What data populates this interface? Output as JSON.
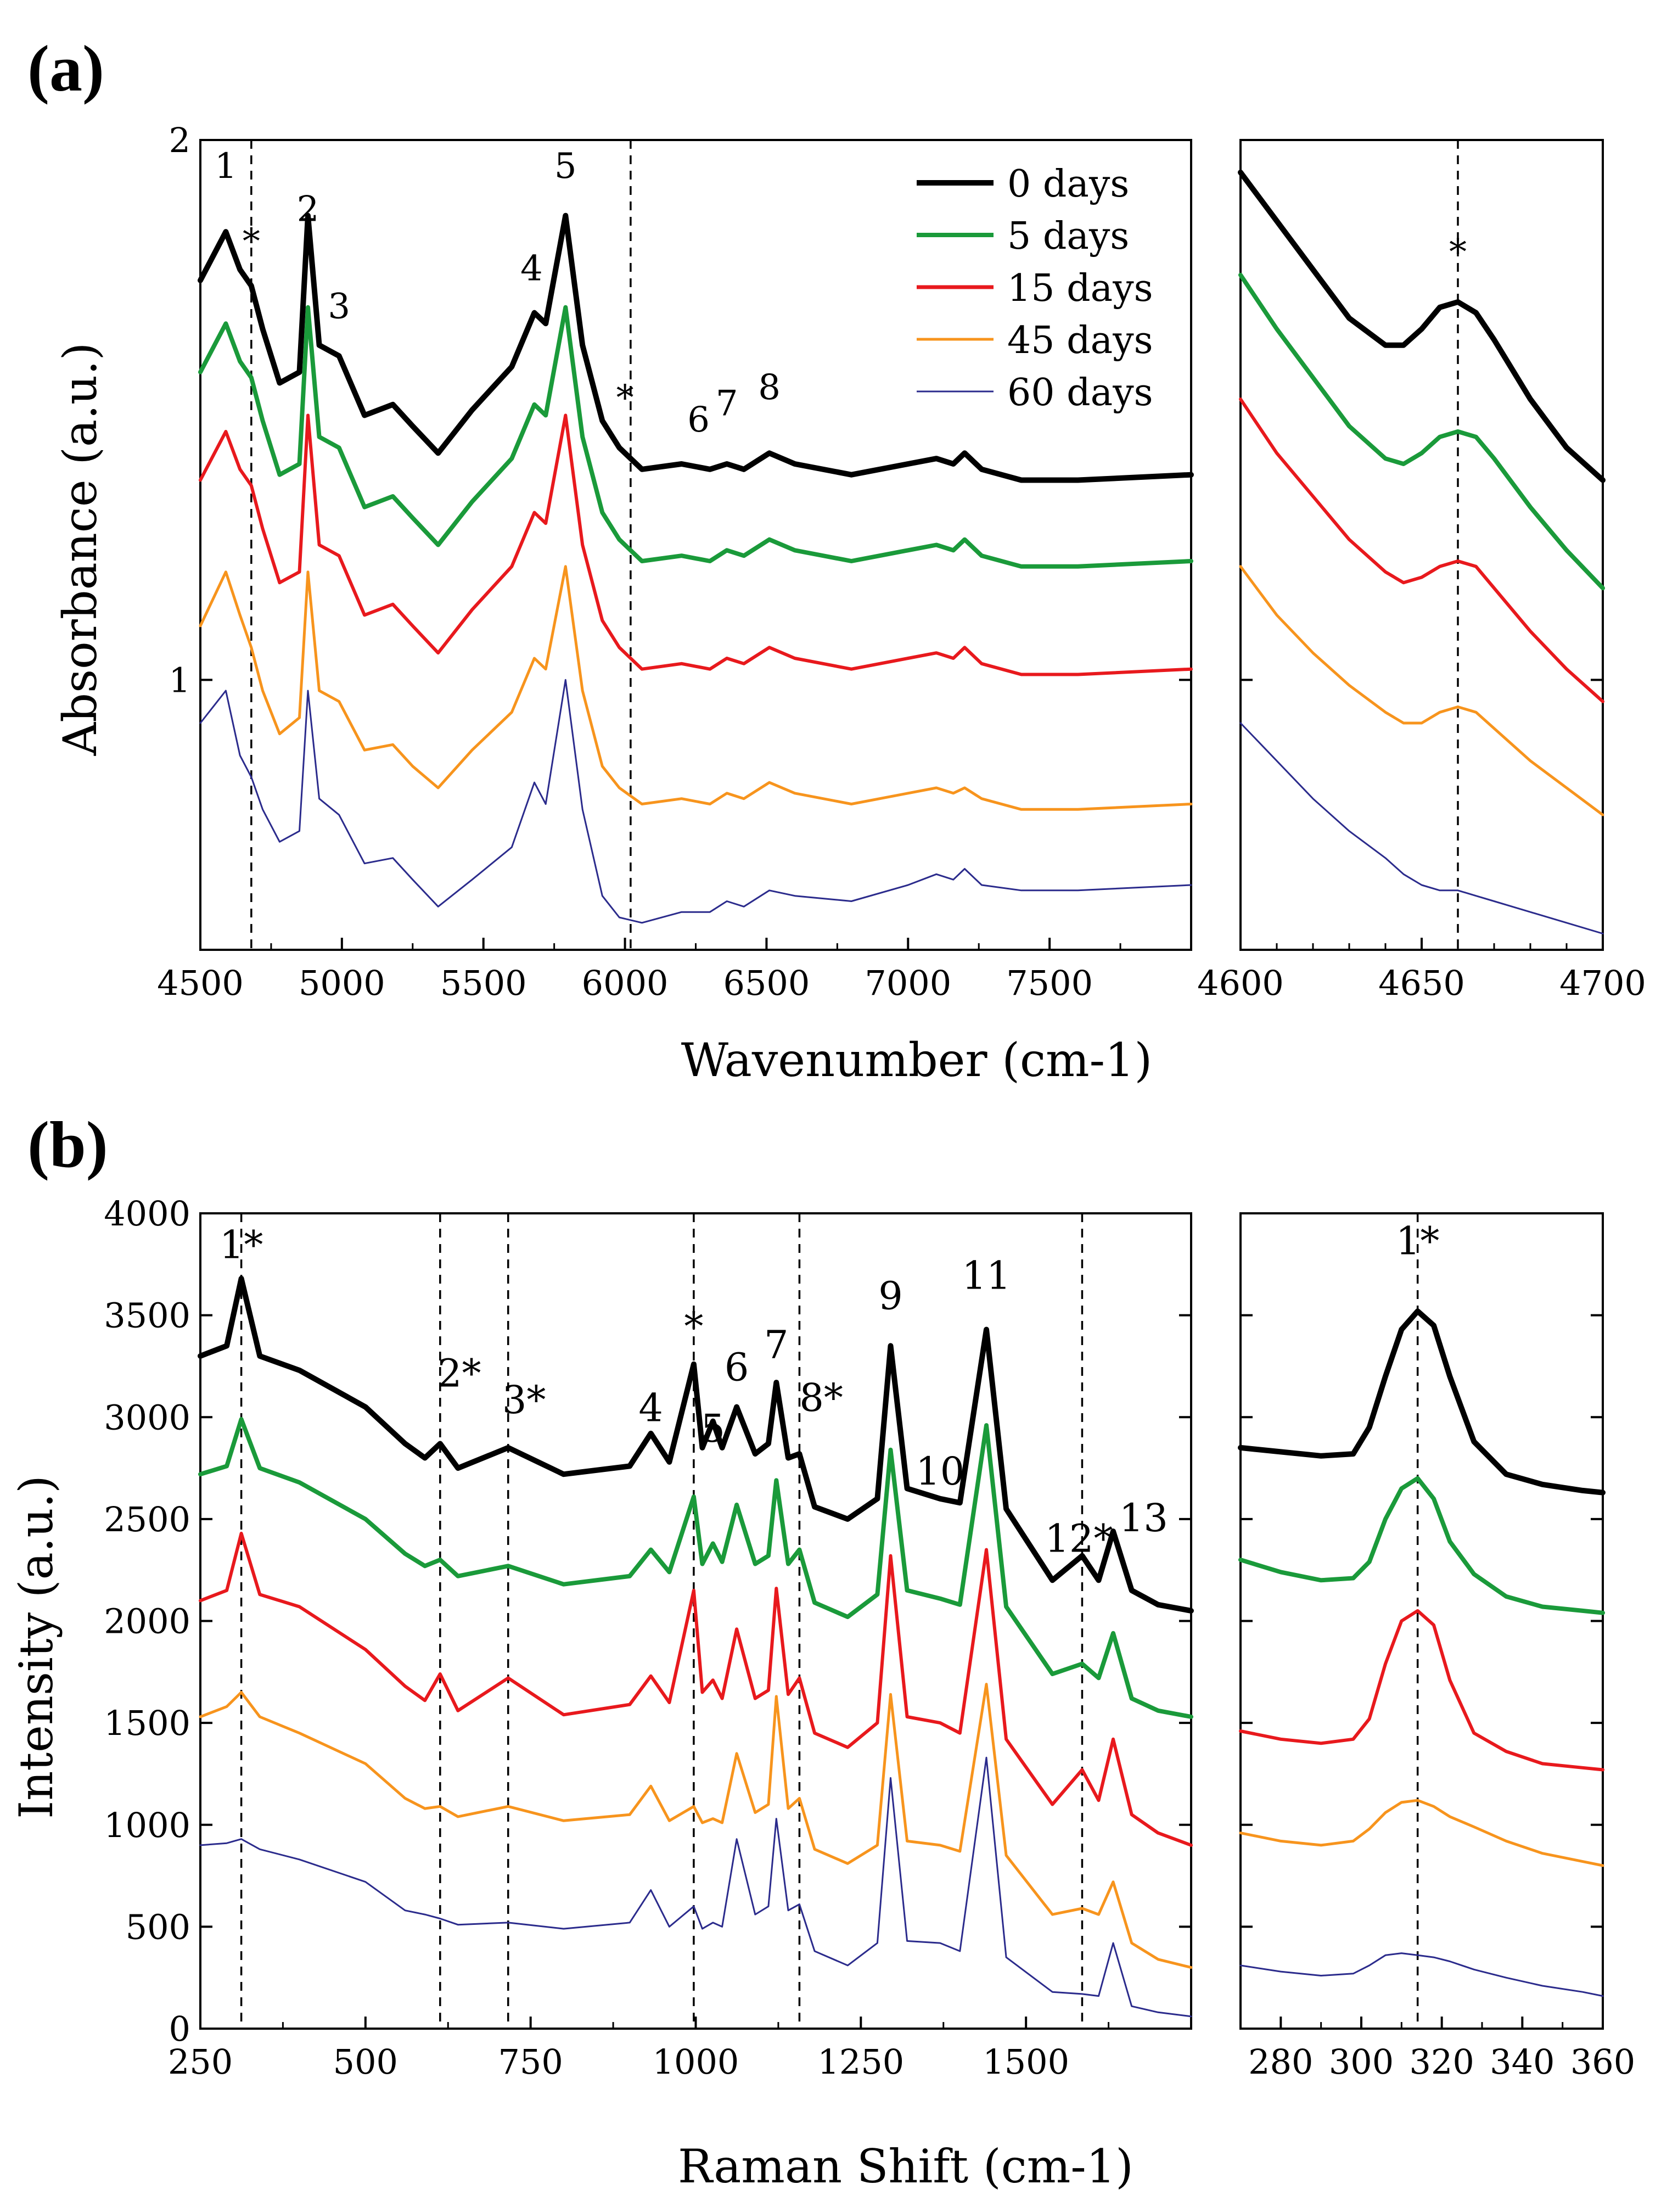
{
  "colors": {
    "0 days": "#000000",
    "5 days": "#1a9a3a",
    "15 days": "#e8191d",
    "45 days": "#f7941d",
    "60 days": "#2b2b8c",
    "frame": "#000000",
    "guide": "#000000"
  },
  "legend": {
    "entries": [
      "0 days",
      "5 days",
      "15 days",
      "45 days",
      "60 days"
    ],
    "position": "top-right"
  },
  "panel_labels": {
    "a": "(a)",
    "b": "(b)"
  },
  "chart_data": [
    {
      "id": "a_main",
      "type": "line",
      "panel": "(a)",
      "xlabel": "Wavenumber (cm-1)",
      "ylabel": "Absorbance (a.u.)",
      "xlim": [
        4500,
        8000
      ],
      "ylim": [
        0.5,
        2
      ],
      "xticks": [
        4500,
        5000,
        5500,
        6000,
        6500,
        7000,
        7500
      ],
      "yticks": [
        1,
        2
      ],
      "vlines": [
        4680,
        6020
      ],
      "peak_labels": [
        {
          "text": "1",
          "x": 4590,
          "y": 1.93
        },
        {
          "text": "*",
          "x": 4680,
          "y": 1.79
        },
        {
          "text": "2",
          "x": 4880,
          "y": 1.85
        },
        {
          "text": "3",
          "x": 4990,
          "y": 1.67
        },
        {
          "text": "4",
          "x": 5670,
          "y": 1.74
        },
        {
          "text": "5",
          "x": 5790,
          "y": 1.93
        },
        {
          "text": "*",
          "x": 6000,
          "y": 1.5
        },
        {
          "text": "6",
          "x": 6260,
          "y": 1.46
        },
        {
          "text": "7",
          "x": 6360,
          "y": 1.49
        },
        {
          "text": "8",
          "x": 6510,
          "y": 1.52
        }
      ],
      "x": [
        4500,
        4590,
        4640,
        4680,
        4720,
        4780,
        4850,
        4880,
        4920,
        4990,
        5080,
        5180,
        5250,
        5340,
        5460,
        5600,
        5680,
        5720,
        5790,
        5850,
        5920,
        5980,
        6060,
        6200,
        6300,
        6360,
        6420,
        6510,
        6600,
        6800,
        7000,
        7100,
        7160,
        7200,
        7260,
        7400,
        7600,
        8000
      ],
      "series": [
        {
          "name": "0 days",
          "values": [
            1.74,
            1.83,
            1.76,
            1.73,
            1.65,
            1.55,
            1.57,
            1.86,
            1.62,
            1.6,
            1.49,
            1.51,
            1.47,
            1.42,
            1.5,
            1.58,
            1.68,
            1.66,
            1.86,
            1.62,
            1.48,
            1.43,
            1.39,
            1.4,
            1.39,
            1.4,
            1.39,
            1.42,
            1.4,
            1.38,
            1.4,
            1.41,
            1.4,
            1.42,
            1.39,
            1.37,
            1.37,
            1.38
          ]
        },
        {
          "name": "5 days",
          "values": [
            1.57,
            1.66,
            1.59,
            1.56,
            1.48,
            1.38,
            1.4,
            1.69,
            1.45,
            1.43,
            1.32,
            1.34,
            1.3,
            1.25,
            1.33,
            1.41,
            1.51,
            1.49,
            1.69,
            1.45,
            1.31,
            1.26,
            1.22,
            1.23,
            1.22,
            1.24,
            1.23,
            1.26,
            1.24,
            1.22,
            1.24,
            1.25,
            1.24,
            1.26,
            1.23,
            1.21,
            1.21,
            1.22
          ]
        },
        {
          "name": "15 days",
          "values": [
            1.37,
            1.46,
            1.39,
            1.36,
            1.28,
            1.18,
            1.2,
            1.49,
            1.25,
            1.23,
            1.12,
            1.14,
            1.1,
            1.05,
            1.13,
            1.21,
            1.31,
            1.29,
            1.49,
            1.25,
            1.11,
            1.06,
            1.02,
            1.03,
            1.02,
            1.04,
            1.03,
            1.06,
            1.04,
            1.02,
            1.04,
            1.05,
            1.04,
            1.06,
            1.03,
            1.01,
            1.01,
            1.02
          ]
        },
        {
          "name": "45 days",
          "values": [
            1.1,
            1.2,
            1.12,
            1.06,
            0.98,
            0.9,
            0.93,
            1.2,
            0.98,
            0.96,
            0.87,
            0.88,
            0.84,
            0.8,
            0.87,
            0.94,
            1.04,
            1.02,
            1.21,
            0.98,
            0.84,
            0.8,
            0.77,
            0.78,
            0.77,
            0.79,
            0.78,
            0.81,
            0.79,
            0.77,
            0.79,
            0.8,
            0.79,
            0.8,
            0.78,
            0.76,
            0.76,
            0.77
          ]
        },
        {
          "name": "60 days",
          "values": [
            0.92,
            0.98,
            0.86,
            0.82,
            0.76,
            0.7,
            0.72,
            0.98,
            0.78,
            0.75,
            0.66,
            0.67,
            0.63,
            0.58,
            0.63,
            0.69,
            0.81,
            0.77,
            1.0,
            0.76,
            0.6,
            0.56,
            0.55,
            0.57,
            0.57,
            0.59,
            0.58,
            0.61,
            0.6,
            0.59,
            0.62,
            0.64,
            0.63,
            0.65,
            0.62,
            0.61,
            0.61,
            0.62
          ]
        }
      ]
    },
    {
      "id": "a_zoom",
      "type": "line",
      "panel": "(a)",
      "xlim": [
        4600,
        4700
      ],
      "ylim": [
        0.5,
        2
      ],
      "xticks": [
        4600,
        4650,
        4700
      ],
      "vlines": [
        4660
      ],
      "peak_labels": [
        {
          "text": "*",
          "x": 4660,
          "y": 1.77
        }
      ],
      "x": [
        4600,
        4610,
        4620,
        4630,
        4640,
        4645,
        4650,
        4655,
        4660,
        4665,
        4670,
        4680,
        4690,
        4700
      ],
      "series": [
        {
          "name": "0 days",
          "values": [
            1.94,
            1.85,
            1.76,
            1.67,
            1.62,
            1.62,
            1.65,
            1.69,
            1.7,
            1.68,
            1.63,
            1.52,
            1.43,
            1.37
          ]
        },
        {
          "name": "5 days",
          "values": [
            1.75,
            1.65,
            1.56,
            1.47,
            1.41,
            1.4,
            1.42,
            1.45,
            1.46,
            1.45,
            1.41,
            1.32,
            1.24,
            1.17
          ]
        },
        {
          "name": "15 days",
          "values": [
            1.52,
            1.42,
            1.34,
            1.26,
            1.2,
            1.18,
            1.19,
            1.21,
            1.22,
            1.21,
            1.17,
            1.09,
            1.02,
            0.96
          ]
        },
        {
          "name": "45 days",
          "values": [
            1.21,
            1.12,
            1.05,
            0.99,
            0.94,
            0.92,
            0.92,
            0.94,
            0.95,
            0.94,
            0.91,
            0.85,
            0.8,
            0.75
          ]
        },
        {
          "name": "60 days",
          "values": [
            0.92,
            0.85,
            0.78,
            0.72,
            0.67,
            0.64,
            0.62,
            0.61,
            0.61,
            0.6,
            0.59,
            0.57,
            0.55,
            0.53
          ]
        }
      ]
    },
    {
      "id": "b_main",
      "type": "line",
      "panel": "(b)",
      "xlabel": "Raman Shift (cm-1)",
      "ylabel": "Intensity (a.u.)",
      "xlim": [
        250,
        1750
      ],
      "ylim": [
        0,
        4000
      ],
      "xticks": [
        250,
        500,
        750,
        1000,
        1250,
        1500
      ],
      "yticks": [
        0,
        500,
        1000,
        1500,
        2000,
        2500,
        3000,
        3500,
        4000
      ],
      "vlines": [
        312,
        613,
        716,
        997,
        1157,
        1585
      ],
      "peak_labels": [
        {
          "text": "1*",
          "x": 312,
          "y": 3780
        },
        {
          "text": "2*",
          "x": 642,
          "y": 3150
        },
        {
          "text": "3*",
          "x": 740,
          "y": 3020
        },
        {
          "text": "4",
          "x": 932,
          "y": 2980
        },
        {
          "text": "*",
          "x": 997,
          "y": 3380
        },
        {
          "text": "5",
          "x": 1026,
          "y": 2880
        },
        {
          "text": "6",
          "x": 1062,
          "y": 3180
        },
        {
          "text": "7",
          "x": 1122,
          "y": 3290
        },
        {
          "text": "8*",
          "x": 1190,
          "y": 3030
        },
        {
          "text": "9",
          "x": 1295,
          "y": 3530
        },
        {
          "text": "10",
          "x": 1370,
          "y": 2670
        },
        {
          "text": "11",
          "x": 1440,
          "y": 3630
        },
        {
          "text": "12*",
          "x": 1580,
          "y": 2340
        },
        {
          "text": "13",
          "x": 1678,
          "y": 2440
        }
      ],
      "x": [
        250,
        290,
        312,
        340,
        400,
        500,
        560,
        590,
        613,
        640,
        716,
        800,
        900,
        932,
        960,
        997,
        1010,
        1026,
        1040,
        1062,
        1090,
        1110,
        1122,
        1140,
        1157,
        1180,
        1230,
        1275,
        1295,
        1320,
        1370,
        1400,
        1440,
        1470,
        1540,
        1585,
        1610,
        1632,
        1660,
        1700,
        1750
      ],
      "series": [
        {
          "name": "0 days",
          "values": [
            3300,
            3350,
            3680,
            3300,
            3230,
            3050,
            2870,
            2800,
            2870,
            2750,
            2850,
            2720,
            2760,
            2920,
            2780,
            3260,
            2850,
            2980,
            2850,
            3050,
            2820,
            2870,
            3170,
            2800,
            2820,
            2560,
            2500,
            2600,
            3350,
            2650,
            2600,
            2580,
            3430,
            2550,
            2200,
            2320,
            2200,
            2440,
            2150,
            2080,
            2050
          ]
        },
        {
          "name": "5 days",
          "values": [
            2720,
            2760,
            2990,
            2750,
            2680,
            2500,
            2330,
            2270,
            2300,
            2220,
            2270,
            2180,
            2220,
            2350,
            2240,
            2610,
            2280,
            2380,
            2290,
            2570,
            2280,
            2320,
            2690,
            2280,
            2350,
            2090,
            2020,
            2130,
            2840,
            2150,
            2110,
            2080,
            2960,
            2070,
            1740,
            1790,
            1720,
            1940,
            1620,
            1560,
            1530
          ]
        },
        {
          "name": "15 days",
          "values": [
            2100,
            2150,
            2430,
            2130,
            2070,
            1860,
            1680,
            1610,
            1740,
            1560,
            1720,
            1540,
            1590,
            1730,
            1600,
            2150,
            1650,
            1710,
            1620,
            1960,
            1620,
            1660,
            2160,
            1640,
            1720,
            1450,
            1380,
            1500,
            2320,
            1530,
            1500,
            1450,
            2350,
            1420,
            1100,
            1270,
            1120,
            1420,
            1050,
            960,
            900
          ]
        },
        {
          "name": "45 days",
          "values": [
            1530,
            1580,
            1650,
            1530,
            1450,
            1300,
            1130,
            1080,
            1090,
            1040,
            1090,
            1020,
            1050,
            1190,
            1020,
            1090,
            1010,
            1030,
            1010,
            1350,
            1060,
            1100,
            1630,
            1080,
            1130,
            880,
            810,
            900,
            1640,
            920,
            900,
            870,
            1690,
            850,
            560,
            590,
            560,
            720,
            420,
            340,
            300
          ]
        },
        {
          "name": "60 days",
          "values": [
            900,
            910,
            930,
            880,
            830,
            720,
            580,
            560,
            540,
            510,
            520,
            490,
            520,
            680,
            500,
            600,
            490,
            520,
            500,
            930,
            560,
            600,
            1030,
            580,
            610,
            380,
            310,
            420,
            1230,
            430,
            420,
            380,
            1330,
            350,
            180,
            170,
            160,
            420,
            110,
            80,
            60
          ]
        }
      ]
    },
    {
      "id": "b_zoom",
      "type": "line",
      "panel": "(b)",
      "xlim": [
        270,
        360
      ],
      "ylim": [
        0,
        4000
      ],
      "xticks": [
        280,
        300,
        320,
        340,
        360
      ],
      "vlines": [
        314
      ],
      "peak_labels": [
        {
          "text": "1*",
          "x": 314,
          "y": 3800
        }
      ],
      "x": [
        270,
        280,
        290,
        298,
        302,
        306,
        310,
        314,
        318,
        322,
        328,
        336,
        345,
        355,
        360
      ],
      "series": [
        {
          "name": "0 days",
          "values": [
            2850,
            2830,
            2810,
            2820,
            2950,
            3200,
            3430,
            3520,
            3450,
            3200,
            2880,
            2720,
            2670,
            2640,
            2630
          ]
        },
        {
          "name": "5 days",
          "values": [
            2300,
            2240,
            2200,
            2210,
            2290,
            2500,
            2650,
            2700,
            2600,
            2390,
            2230,
            2120,
            2070,
            2050,
            2040
          ]
        },
        {
          "name": "15 days",
          "values": [
            1460,
            1420,
            1400,
            1420,
            1520,
            1790,
            2000,
            2050,
            1980,
            1710,
            1450,
            1360,
            1300,
            1280,
            1270
          ]
        },
        {
          "name": "45 days",
          "values": [
            960,
            920,
            900,
            920,
            980,
            1060,
            1110,
            1120,
            1090,
            1040,
            990,
            920,
            860,
            820,
            800
          ]
        },
        {
          "name": "60 days",
          "values": [
            310,
            280,
            260,
            270,
            310,
            360,
            370,
            360,
            350,
            330,
            290,
            250,
            210,
            180,
            160
          ]
        }
      ]
    }
  ]
}
